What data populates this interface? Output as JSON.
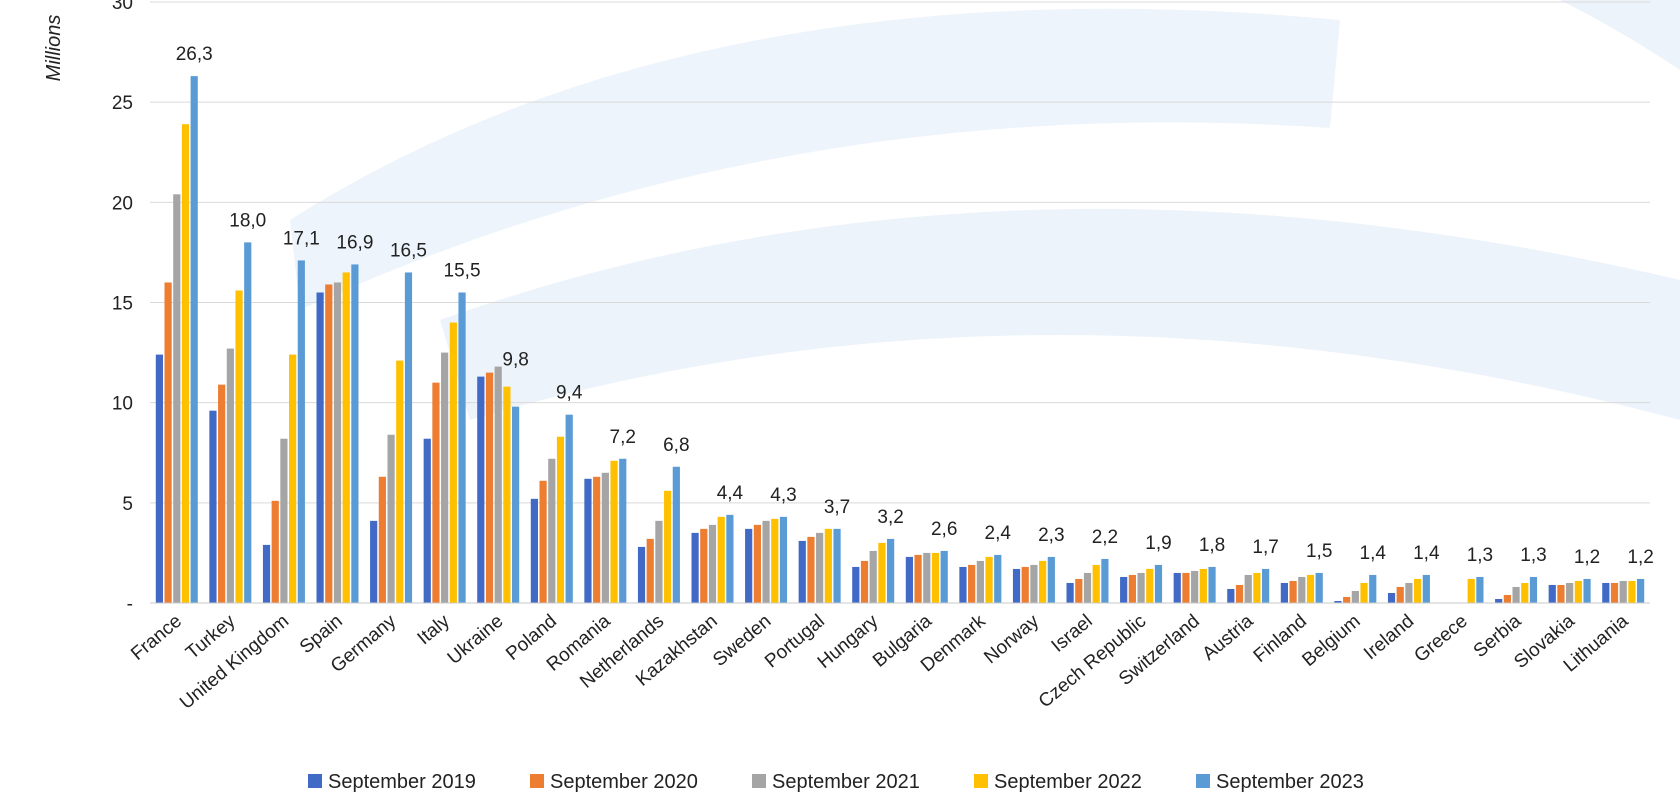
{
  "chart_data": {
    "type": "bar",
    "title": "",
    "xlabel": "",
    "ylabel": "Millions",
    "ylim": [
      0,
      30
    ],
    "yticks": [
      {
        "value": 0,
        "label": "-"
      },
      {
        "value": 5,
        "label": "5"
      },
      {
        "value": 10,
        "label": "10"
      },
      {
        "value": 15,
        "label": "15"
      },
      {
        "value": 20,
        "label": "20"
      },
      {
        "value": 25,
        "label": "25"
      },
      {
        "value": 30,
        "label": "30"
      }
    ],
    "grid": true,
    "legend_position": "bottom",
    "categories": [
      "France",
      "Turkey",
      "United Kingdom",
      "Spain",
      "Germany",
      "Italy",
      "Ukraine",
      "Poland",
      "Romania",
      "Netherlands",
      "Kazakhstan",
      "Sweden",
      "Portugal",
      "Hungary",
      "Bulgaria",
      "Denmark",
      "Norway",
      "Israel",
      "Czech Republic",
      "Switzerland",
      "Austria",
      "Finland",
      "Belgium",
      "Ireland",
      "Greece",
      "Serbia",
      "Slovakia",
      "Lithuania"
    ],
    "series": [
      {
        "name": "September 2019",
        "color": "#4169C6",
        "values": [
          12.4,
          9.6,
          2.9,
          15.5,
          4.1,
          8.2,
          11.3,
          5.2,
          6.2,
          2.8,
          3.5,
          3.7,
          3.1,
          1.8,
          2.3,
          1.8,
          1.7,
          1.0,
          1.3,
          1.5,
          0.7,
          1.0,
          0.1,
          0.5,
          null,
          0.2,
          0.9,
          1.0
        ]
      },
      {
        "name": "September 2020",
        "color": "#ED7D31",
        "values": [
          16.0,
          10.9,
          5.1,
          15.9,
          6.3,
          11.0,
          11.5,
          6.1,
          6.3,
          3.2,
          3.7,
          3.9,
          3.3,
          2.1,
          2.4,
          1.9,
          1.8,
          1.2,
          1.4,
          1.5,
          0.9,
          1.1,
          0.3,
          0.8,
          null,
          0.4,
          0.9,
          1.0
        ]
      },
      {
        "name": "September 2021",
        "color": "#A5A5A5",
        "values": [
          20.4,
          12.7,
          8.2,
          16.0,
          8.4,
          12.5,
          11.8,
          7.2,
          6.5,
          4.1,
          3.9,
          4.1,
          3.5,
          2.6,
          2.5,
          2.1,
          1.9,
          1.5,
          1.5,
          1.6,
          1.4,
          1.3,
          0.6,
          1.0,
          null,
          0.8,
          1.0,
          1.1
        ]
      },
      {
        "name": "September 2022",
        "color": "#FFC000",
        "values": [
          23.9,
          15.6,
          12.4,
          16.5,
          12.1,
          14.0,
          10.8,
          8.3,
          7.1,
          5.6,
          4.3,
          4.2,
          3.7,
          3.0,
          2.5,
          2.3,
          2.1,
          1.9,
          1.7,
          1.7,
          1.5,
          1.4,
          1.0,
          1.2,
          1.2,
          1.0,
          1.1,
          1.1
        ]
      },
      {
        "name": "September 2023",
        "color": "#5B9BD5",
        "values": [
          26.3,
          18.0,
          17.1,
          16.9,
          16.5,
          15.5,
          9.8,
          9.4,
          7.2,
          6.8,
          4.4,
          4.3,
          3.7,
          3.2,
          2.6,
          2.4,
          2.3,
          2.2,
          1.9,
          1.8,
          1.7,
          1.5,
          1.4,
          1.4,
          1.3,
          1.3,
          1.2,
          1.2
        ]
      }
    ],
    "data_labels": [
      "26,3",
      "18,0",
      "17,1",
      "16,9",
      "16,5",
      "15,5",
      "9,8",
      "9,4",
      "7,2",
      "6,8",
      "4,4",
      "4,3",
      "3,7",
      "3,2",
      "2,6",
      "2,4",
      "2,3",
      "2,2",
      "1,9",
      "1,8",
      "1,7",
      "1,5",
      "1,4",
      "1,4",
      "1,3",
      "1,3",
      "1,2",
      "1,2"
    ],
    "background_color": "#E8F0FA"
  }
}
